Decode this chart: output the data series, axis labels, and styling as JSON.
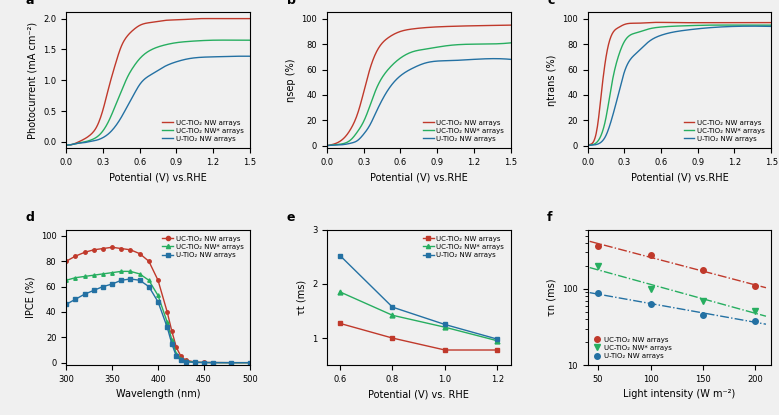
{
  "colors": {
    "red": "#c0392b",
    "green": "#27ae60",
    "blue": "#2471a3"
  },
  "bg_color": "#f0f0f0",
  "panel_a": {
    "label": "a",
    "xlabel": "Potential (V) vs.RHE",
    "ylabel": "Photocurrent (mA cm⁻²)",
    "xlim": [
      0.0,
      1.5
    ],
    "ylim": [
      -0.1,
      2.1
    ],
    "red_x": [
      0.0,
      0.05,
      0.1,
      0.15,
      0.2,
      0.25,
      0.3,
      0.35,
      0.4,
      0.45,
      0.5,
      0.55,
      0.6,
      0.7,
      0.8,
      0.9,
      1.0,
      1.1,
      1.2,
      1.3,
      1.4,
      1.5
    ],
    "red_y": [
      -0.05,
      -0.04,
      0.0,
      0.05,
      0.12,
      0.25,
      0.52,
      0.9,
      1.25,
      1.55,
      1.72,
      1.82,
      1.89,
      1.94,
      1.97,
      1.98,
      1.99,
      2.0,
      2.0,
      2.0,
      2.0,
      2.0
    ],
    "green_x": [
      0.0,
      0.05,
      0.1,
      0.15,
      0.2,
      0.25,
      0.3,
      0.35,
      0.4,
      0.45,
      0.5,
      0.55,
      0.6,
      0.7,
      0.8,
      0.9,
      1.0,
      1.2,
      1.4,
      1.5
    ],
    "green_y": [
      -0.05,
      -0.04,
      -0.02,
      0.0,
      0.03,
      0.08,
      0.18,
      0.35,
      0.58,
      0.82,
      1.05,
      1.22,
      1.35,
      1.5,
      1.57,
      1.61,
      1.63,
      1.65,
      1.65,
      1.65
    ],
    "blue_x": [
      0.0,
      0.05,
      0.1,
      0.15,
      0.2,
      0.25,
      0.3,
      0.35,
      0.4,
      0.45,
      0.5,
      0.55,
      0.6,
      0.7,
      0.8,
      0.9,
      1.0,
      1.2,
      1.4,
      1.5
    ],
    "blue_y": [
      -0.05,
      -0.04,
      -0.02,
      -0.01,
      0.01,
      0.03,
      0.07,
      0.14,
      0.25,
      0.4,
      0.58,
      0.76,
      0.93,
      1.1,
      1.22,
      1.3,
      1.35,
      1.38,
      1.39,
      1.39
    ],
    "legend": [
      "UC-TiO₂ NW arrays",
      "UC-TiO₂ NW* arrays",
      "U-TiO₂ NW arrays"
    ]
  },
  "panel_b": {
    "label": "b",
    "xlabel": "Potential (V) vs.RHE",
    "ylabel": "ηsep (%)",
    "xlim": [
      0.0,
      1.5
    ],
    "ylim": [
      -2,
      105
    ],
    "red_x": [
      0.0,
      0.05,
      0.1,
      0.15,
      0.2,
      0.25,
      0.3,
      0.35,
      0.4,
      0.5,
      0.6,
      0.7,
      0.8,
      1.0,
      1.2,
      1.5
    ],
    "red_y": [
      0,
      1,
      3,
      7,
      14,
      25,
      42,
      60,
      73,
      85,
      90,
      92,
      93,
      94,
      94.5,
      95
    ],
    "green_x": [
      0.0,
      0.05,
      0.1,
      0.15,
      0.2,
      0.25,
      0.3,
      0.35,
      0.4,
      0.5,
      0.6,
      0.7,
      0.8,
      1.0,
      1.2,
      1.5
    ],
    "green_y": [
      0,
      0.5,
      1,
      2,
      5,
      11,
      19,
      31,
      44,
      60,
      69,
      74,
      76,
      79,
      80,
      81
    ],
    "blue_x": [
      0.0,
      0.05,
      0.1,
      0.15,
      0.2,
      0.25,
      0.3,
      0.35,
      0.4,
      0.5,
      0.6,
      0.7,
      0.8,
      1.0,
      1.2,
      1.5
    ],
    "blue_y": [
      0,
      0.3,
      0.5,
      1,
      2,
      4,
      9,
      16,
      26,
      44,
      55,
      61,
      65,
      67,
      68,
      68
    ],
    "legend": [
      "UC-TiO₂ NW arrays",
      "UC-TiO₂ NW* arrays",
      "U-TiO₂ NW arrays"
    ]
  },
  "panel_c": {
    "label": "c",
    "xlabel": "Potential (V) vs.RHE",
    "ylabel": "ηtrans (%)",
    "xlim": [
      0.0,
      1.5
    ],
    "ylim": [
      -2,
      105
    ],
    "red_x": [
      0.0,
      0.04,
      0.08,
      0.12,
      0.16,
      0.2,
      0.25,
      0.3,
      0.4,
      0.5,
      0.7,
      1.0,
      1.2,
      1.5
    ],
    "red_y": [
      0,
      2,
      15,
      48,
      75,
      88,
      93,
      95.5,
      96.5,
      97,
      97,
      97,
      97,
      97
    ],
    "green_x": [
      0.0,
      0.05,
      0.1,
      0.15,
      0.2,
      0.25,
      0.3,
      0.4,
      0.5,
      0.6,
      0.8,
      1.0,
      1.2,
      1.5
    ],
    "green_y": [
      0,
      1,
      6,
      22,
      50,
      70,
      82,
      89,
      92,
      93.5,
      94.5,
      95,
      95,
      95
    ],
    "blue_x": [
      0.0,
      0.05,
      0.1,
      0.15,
      0.2,
      0.25,
      0.3,
      0.4,
      0.5,
      0.6,
      0.8,
      1.0,
      1.2,
      1.5
    ],
    "blue_y": [
      0,
      0.5,
      2,
      8,
      22,
      40,
      58,
      73,
      82,
      87,
      91,
      93,
      94,
      94
    ],
    "legend": [
      "UC-TiO₂ NW arrays",
      "UC-TiO₂ NW* arrays",
      "U-TiO₂ NW arrays"
    ]
  },
  "panel_d": {
    "label": "d",
    "xlabel": "Wavelength (nm)",
    "ylabel": "IPCE (%)",
    "xlim": [
      300,
      500
    ],
    "ylim": [
      -2,
      105
    ],
    "red_x": [
      300,
      310,
      320,
      330,
      340,
      350,
      360,
      370,
      380,
      390,
      400,
      410,
      415,
      420,
      425,
      430,
      440,
      450,
      460,
      480,
      500
    ],
    "red_y": [
      80,
      84,
      87,
      89,
      90,
      91,
      90,
      89,
      86,
      80,
      65,
      40,
      25,
      12,
      5,
      2,
      0.5,
      0.2,
      0.1,
      0,
      0
    ],
    "green_x": [
      300,
      310,
      320,
      330,
      340,
      350,
      360,
      370,
      380,
      390,
      400,
      410,
      415,
      420,
      425,
      430,
      440,
      450,
      460,
      480,
      500
    ],
    "green_y": [
      65,
      67,
      68,
      69,
      70,
      71,
      72,
      72,
      70,
      65,
      53,
      32,
      18,
      7,
      3,
      1,
      0.3,
      0.1,
      0.05,
      0,
      0
    ],
    "blue_x": [
      300,
      310,
      320,
      330,
      340,
      350,
      360,
      370,
      380,
      390,
      400,
      410,
      415,
      420,
      425,
      430,
      440,
      450,
      460,
      480,
      500
    ],
    "blue_y": [
      46,
      50,
      54,
      57,
      60,
      62,
      65,
      66,
      65,
      60,
      48,
      28,
      15,
      5,
      2,
      0.8,
      0.2,
      0.1,
      0.05,
      0,
      0
    ],
    "legend": [
      "UC-TiO₂ NW arrays",
      "UC-TiO₂ NW* arrays",
      "U-TiO₂ NW arrays"
    ]
  },
  "panel_e": {
    "label": "e",
    "xlabel": "Potential (V) vs. RHE",
    "ylabel": "τt (ms)",
    "xlim": [
      0.55,
      1.25
    ],
    "ylim": [
      0.5,
      3.0
    ],
    "red_x": [
      0.6,
      0.8,
      1.0,
      1.2
    ],
    "red_y": [
      1.27,
      1.0,
      0.78,
      0.78
    ],
    "green_x": [
      0.6,
      0.8,
      1.0,
      1.2
    ],
    "green_y": [
      1.85,
      1.42,
      1.2,
      0.95
    ],
    "blue_x": [
      0.6,
      0.8,
      1.0,
      1.2
    ],
    "blue_y": [
      2.52,
      1.57,
      1.25,
      0.98
    ],
    "legend": [
      "UC-TiO₂ NW arrays",
      "UC-TiO₂ NW* arrays",
      "U-TiO₂ NW arrays"
    ]
  },
  "panel_f": {
    "label": "f",
    "xlabel": "Light intensity (W m⁻²)",
    "ylabel": "τn (ms)",
    "xlim": [
      40,
      215
    ],
    "ylim_log": [
      10,
      600
    ],
    "red_x": [
      50,
      100,
      150,
      200
    ],
    "red_y": [
      370,
      280,
      175,
      108
    ],
    "green_x": [
      50,
      100,
      150,
      200
    ],
    "green_y": [
      198,
      100,
      70,
      52
    ],
    "blue_x": [
      50,
      100,
      150,
      200
    ],
    "blue_y": [
      88,
      63,
      46,
      38
    ],
    "legend": [
      "UC-TiO₂ NW arrays",
      "UC-TiO₂ NW* arrays",
      "U-TiO₂ NW arrays"
    ]
  }
}
